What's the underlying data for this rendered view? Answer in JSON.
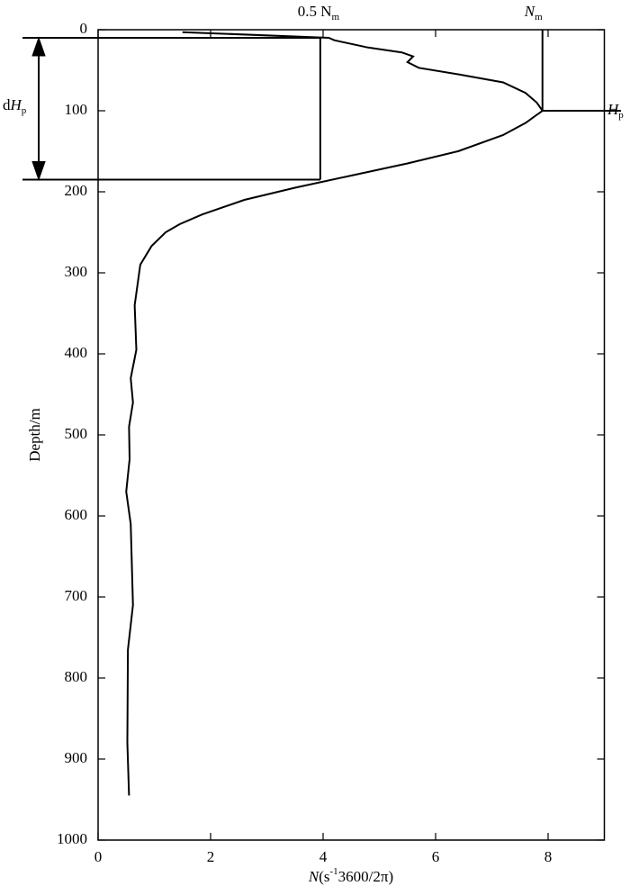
{
  "chart_data": {
    "type": "line",
    "x_label": {
      "italic": "N",
      "before_sup": "(s",
      "sup": "-1",
      "after_sup": "3600/2π)"
    },
    "y_label": "Depth/m",
    "xlim": [
      0,
      9
    ],
    "xticks": [
      0,
      2,
      4,
      6,
      8
    ],
    "ylim": [
      0,
      1000
    ],
    "yticks": [
      0,
      100,
      200,
      300,
      400,
      500,
      600,
      700,
      800,
      900,
      1000
    ],
    "y_inverted": true,
    "depth": [
      3,
      10,
      13,
      22,
      28,
      33,
      40,
      47,
      55,
      65,
      78,
      90,
      100,
      105,
      115,
      130,
      150,
      165,
      180,
      195,
      210,
      228,
      240,
      250,
      267,
      290,
      340,
      395,
      430,
      460,
      490,
      530,
      570,
      610,
      710,
      765,
      880,
      945
    ],
    "series": [
      {
        "color": "#000000",
        "values": [
          1.5,
          4.1,
          4.2,
          4.8,
          5.4,
          5.6,
          5.5,
          5.7,
          6.4,
          7.2,
          7.6,
          7.8,
          7.9,
          7.8,
          7.6,
          7.2,
          6.4,
          5.5,
          4.5,
          3.5,
          2.6,
          1.85,
          1.45,
          1.2,
          0.95,
          0.75,
          0.65,
          0.68,
          0.58,
          0.62,
          0.55,
          0.56,
          0.5,
          0.58,
          0.62,
          0.53,
          0.52,
          0.55
        ]
      }
    ],
    "markers": {
      "n_max": 7.9,
      "n_max_label": {
        "text": "N",
        "sub": "m"
      },
      "half_n_max": 3.95,
      "half_n_max_label": {
        "text": "0.5 N",
        "sub": "m"
      },
      "hp": 100,
      "hp_label": {
        "text": "H",
        "sub": "p"
      },
      "dhp_top": 10,
      "dhp_bottom": 185,
      "dhp_label": {
        "prefix": "d",
        "text": "H",
        "sub": "p"
      }
    }
  }
}
